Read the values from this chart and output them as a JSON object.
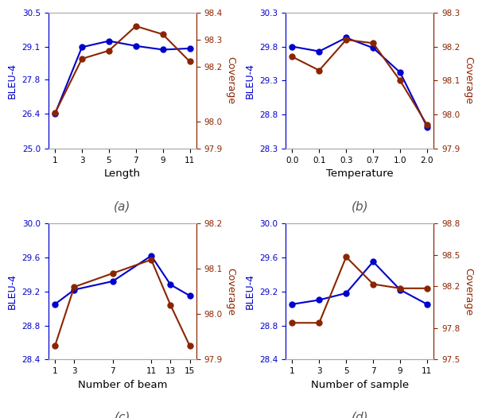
{
  "blue_color": "#0000cc",
  "red_color": "#8b2500",
  "subplot_a": {
    "xlabel": "Length",
    "label": "(a)",
    "x": [
      1,
      3,
      5,
      7,
      9,
      11
    ],
    "bleu": [
      26.4,
      29.1,
      29.35,
      29.15,
      29.0,
      29.05
    ],
    "coverage": [
      98.03,
      98.23,
      98.26,
      98.35,
      98.32,
      98.22
    ],
    "bleu_ylim": [
      25.0,
      30.5
    ],
    "bleu_yticks": [
      25.0,
      26.4,
      27.8,
      29.1,
      30.5
    ],
    "cov_ylim": [
      97.9,
      98.4
    ],
    "cov_yticks": [
      97.9,
      98.0,
      98.2,
      98.3,
      98.4
    ],
    "xticks": [
      1,
      3,
      5,
      7,
      9,
      11
    ]
  },
  "subplot_b": {
    "xlabel": "Temperature",
    "label": "(b)",
    "x": [
      0,
      1,
      2,
      3,
      4,
      5
    ],
    "bleu": [
      29.8,
      29.73,
      29.93,
      29.78,
      29.42,
      28.62
    ],
    "coverage": [
      98.17,
      98.13,
      98.22,
      98.21,
      98.1,
      97.97
    ],
    "bleu_ylim": [
      28.3,
      30.3
    ],
    "bleu_yticks": [
      28.3,
      28.8,
      29.3,
      29.8,
      30.3
    ],
    "cov_ylim": [
      97.9,
      98.3
    ],
    "cov_yticks": [
      97.9,
      98.0,
      98.1,
      98.2,
      98.3
    ],
    "xticks": [
      0,
      1,
      2,
      3,
      4,
      5
    ],
    "xticklabels": [
      "0.0",
      "0.1",
      "0.3",
      "0.7",
      "1.0",
      "2.0"
    ]
  },
  "subplot_c": {
    "xlabel": "Number of beam",
    "label": "(c)",
    "x": [
      1,
      3,
      7,
      11,
      13,
      15
    ],
    "bleu": [
      29.05,
      29.22,
      29.32,
      29.62,
      29.28,
      29.15
    ],
    "coverage": [
      97.93,
      98.06,
      98.09,
      98.12,
      98.02,
      97.93
    ],
    "bleu_ylim": [
      28.4,
      30.0
    ],
    "bleu_yticks": [
      28.4,
      28.8,
      29.2,
      29.6,
      30.0
    ],
    "cov_ylim": [
      97.9,
      98.2
    ],
    "cov_yticks": [
      97.9,
      98.0,
      98.1,
      98.2
    ],
    "xticks": [
      1,
      3,
      7,
      11,
      13,
      15
    ]
  },
  "subplot_d": {
    "xlabel": "Number of sample",
    "label": "(d)",
    "x": [
      1,
      3,
      5,
      7,
      9,
      11
    ],
    "bleu": [
      29.05,
      29.1,
      29.18,
      29.55,
      29.22,
      29.05
    ],
    "coverage": [
      97.85,
      97.85,
      98.48,
      98.22,
      98.18,
      98.18
    ],
    "bleu_ylim": [
      28.4,
      30.0
    ],
    "bleu_yticks": [
      28.4,
      28.8,
      29.2,
      29.6,
      30.0
    ],
    "cov_ylim": [
      97.5,
      98.8
    ],
    "cov_yticks": [
      97.5,
      97.8,
      98.2,
      98.5,
      98.8
    ],
    "xticks": [
      1,
      3,
      5,
      7,
      9,
      11
    ]
  }
}
